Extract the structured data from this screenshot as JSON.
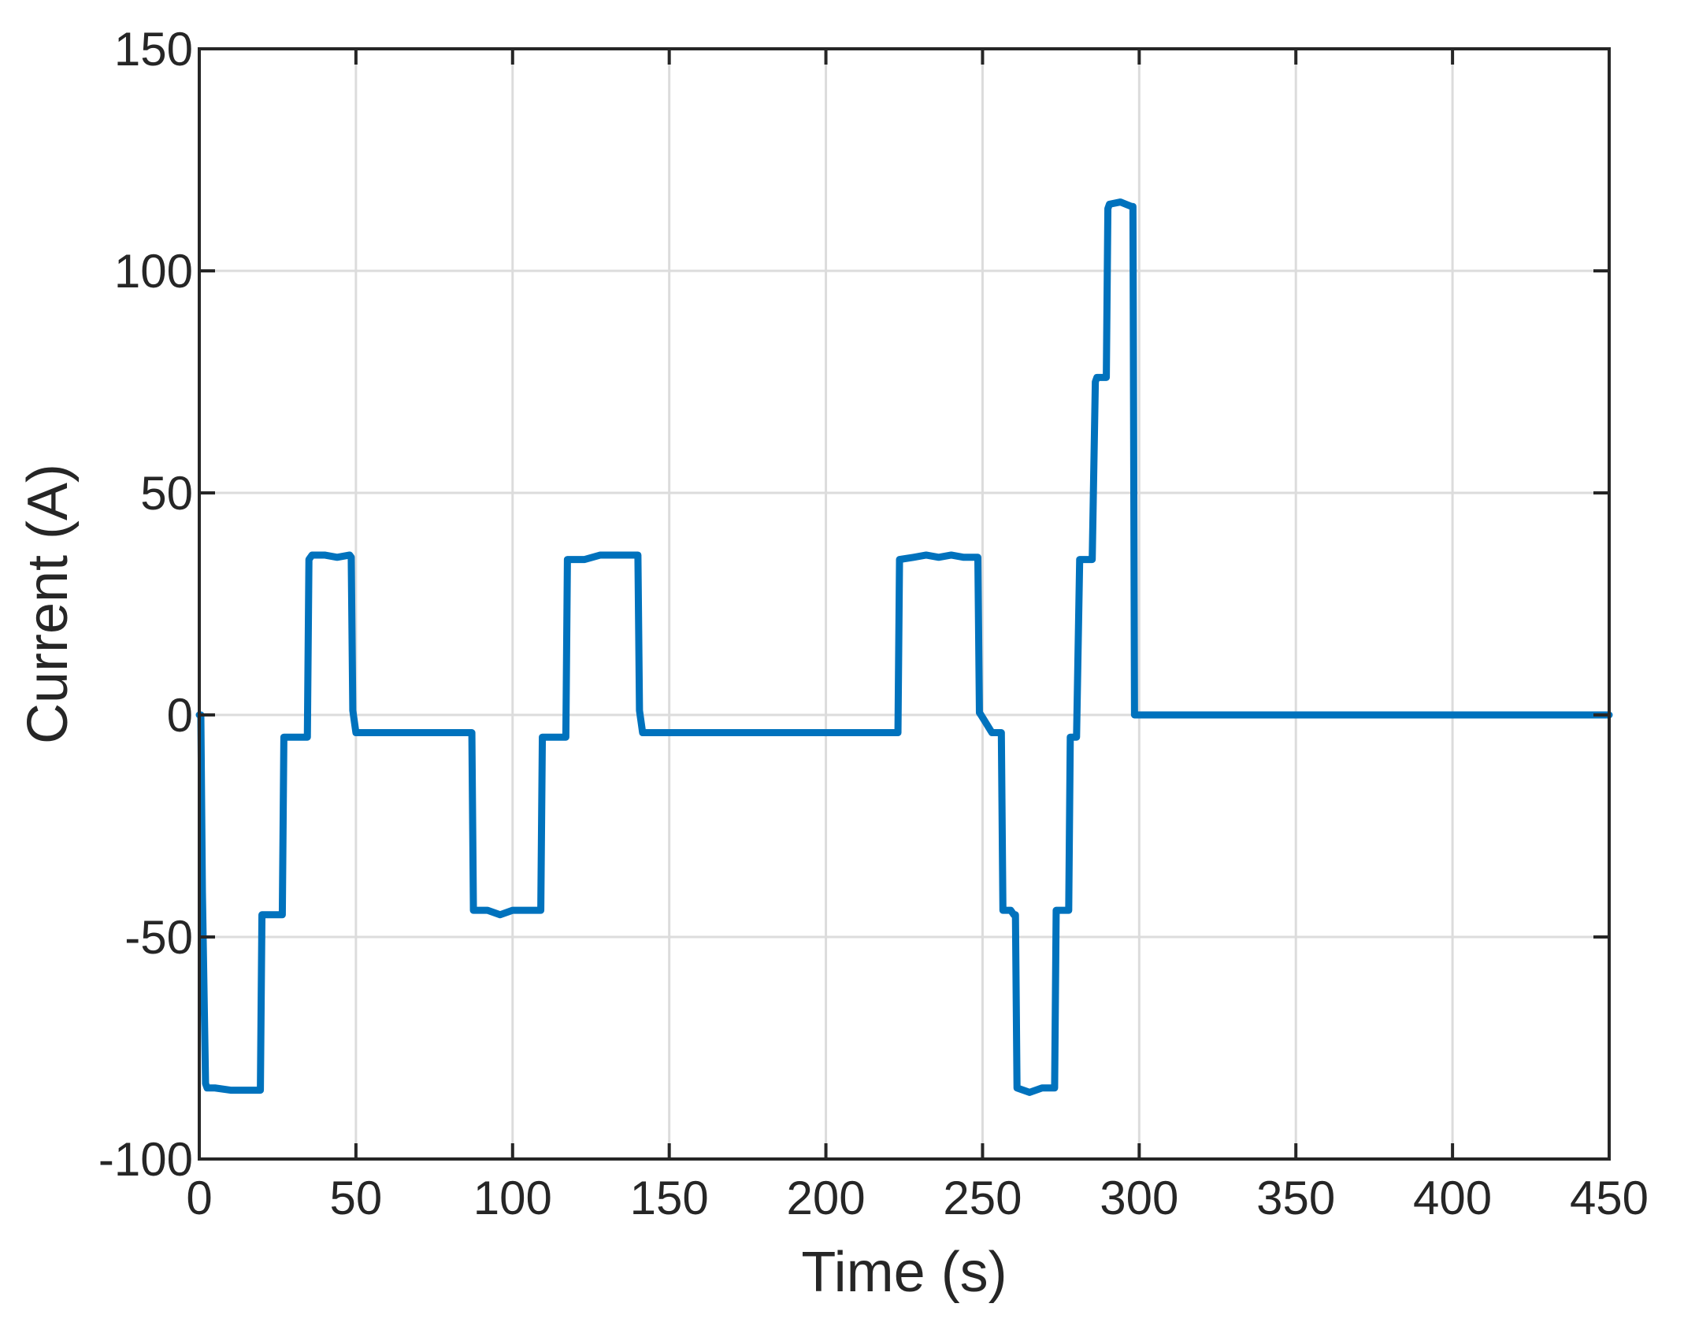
{
  "chart_data": {
    "type": "line",
    "title": "",
    "xlabel": "Time (s)",
    "ylabel": "Current (A)",
    "xlim": [
      0,
      450
    ],
    "ylim": [
      -100,
      150
    ],
    "xticks": [
      0,
      50,
      100,
      150,
      200,
      250,
      300,
      350,
      400,
      450
    ],
    "yticks": [
      -100,
      -50,
      0,
      50,
      100,
      150
    ],
    "xtick_labels": [
      "0",
      "50",
      "100",
      "150",
      "200",
      "250",
      "300",
      "350",
      "400",
      "450"
    ],
    "ytick_labels": [
      "-100",
      "-50",
      "0",
      "50",
      "100",
      "150"
    ],
    "grid": true,
    "legend": "none",
    "colors": {
      "series": "#0072BD",
      "grid": "#DCDCDC",
      "axes": "#262626"
    },
    "series": [
      {
        "x": [
          0,
          0.5,
          1,
          2,
          2.5,
          3,
          5,
          10,
          15,
          19.5,
          20,
          20.5,
          25,
          26.5,
          27,
          27.5,
          33,
          34.5,
          35,
          36,
          40,
          44,
          48,
          48.5,
          49,
          50,
          55,
          70,
          80,
          86.5,
          87,
          87.5,
          92,
          96,
          100,
          104,
          108.5,
          109,
          109.5,
          113.5,
          116.5,
          117,
          117.5,
          123,
          128,
          133,
          139.5,
          140,
          140.5,
          141.5,
          160,
          180,
          200,
          222.5,
          223,
          223.5,
          228,
          232,
          236,
          240,
          244,
          248.5,
          249,
          249.5,
          253,
          255.5,
          256,
          256.5,
          259,
          260,
          260.5,
          261,
          265,
          269,
          272.5,
          273,
          273.5,
          275.5,
          277,
          277.5,
          278,
          280,
          281,
          281.5,
          282,
          285,
          286,
          286.5,
          287,
          289.5,
          290,
          290.5,
          294,
          297.5,
          298,
          298.5,
          300,
          350,
          400,
          450
        ],
        "y": [
          0,
          0,
          -40,
          -83,
          -84,
          -84,
          -84,
          -84.5,
          -84.5,
          -84.5,
          -45,
          -45,
          -45,
          -45,
          -5,
          -5,
          -5,
          -5,
          35,
          36,
          36,
          35.5,
          36,
          35.5,
          1,
          -4,
          -4,
          -4,
          -4,
          -4,
          -4,
          -44,
          -44,
          -45,
          -44,
          -44,
          -44,
          -44,
          -5,
          -5,
          -5,
          -5,
          35,
          35,
          36,
          36,
          36,
          36,
          1,
          -4,
          -4,
          -4,
          -4,
          -4,
          -4,
          35,
          35.5,
          36,
          35.5,
          36,
          35.5,
          35.5,
          0.5,
          0,
          -4,
          -4,
          -4,
          -44,
          -44,
          -45,
          -45,
          -84,
          -85,
          -84,
          -84,
          -84,
          -44,
          -44,
          -44,
          -44,
          -5,
          -5,
          35,
          35,
          35,
          35,
          75,
          76,
          76,
          76,
          114,
          115,
          115.5,
          114.5,
          114.5,
          0,
          0,
          0,
          0,
          0
        ]
      }
    ]
  }
}
